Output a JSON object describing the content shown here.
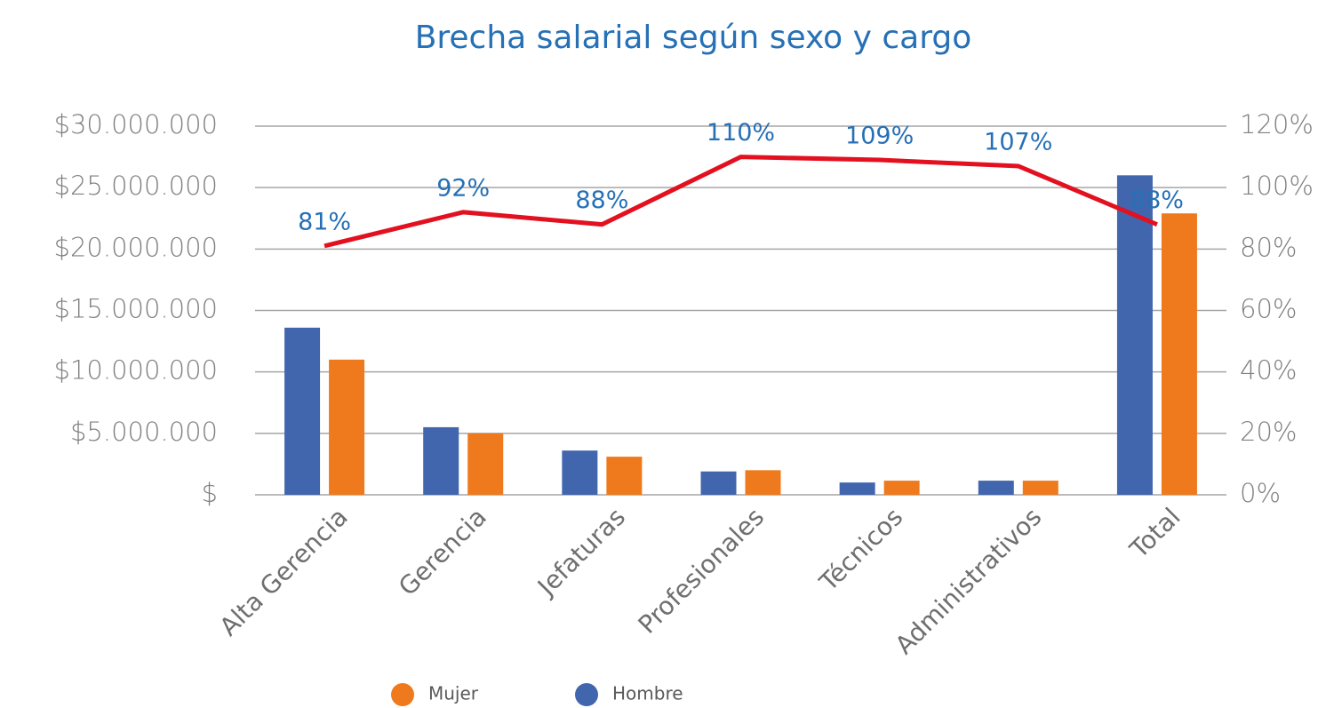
{
  "chart_data": {
    "type": "bar",
    "title": "Brecha salarial según sexo y cargo",
    "categories": [
      "Alta Gerencia",
      "Gerencia",
      "Jefaturas",
      "Profesionales",
      "Técnicos",
      "Administrativos",
      "Total"
    ],
    "series": [
      {
        "name": "Hombre",
        "color": "#4166ae",
        "values": [
          13600000,
          5500000,
          3600000,
          1900000,
          1000000,
          1150000,
          26000000
        ]
      },
      {
        "name": "Mujer",
        "color": "#ef7a1d",
        "values": [
          11000000,
          5000000,
          3100000,
          2000000,
          1150000,
          1150000,
          22900000
        ]
      },
      {
        "type": "line",
        "axis": "y2",
        "color": "#e3101f",
        "values": [
          81,
          92,
          88,
          110,
          109,
          107,
          88
        ],
        "value_labels": [
          "81%",
          "92%",
          "88%",
          "110%",
          "109%",
          "107%",
          "88%"
        ]
      }
    ],
    "ylim": [
      0,
      30000000
    ],
    "yticks": [
      {
        "value": 0,
        "label": "$"
      },
      {
        "value": 5000000,
        "label": "$5.000.000"
      },
      {
        "value": 10000000,
        "label": "$10.000.000"
      },
      {
        "value": 15000000,
        "label": "$15.000.000"
      },
      {
        "value": 20000000,
        "label": "$20.000.000"
      },
      {
        "value": 25000000,
        "label": "$25.000.000"
      },
      {
        "value": 30000000,
        "label": "$30.000.000"
      }
    ],
    "y2lim": [
      0,
      120
    ],
    "y2ticks": [
      {
        "value": 0,
        "label": "0%"
      },
      {
        "value": 20,
        "label": "20%"
      },
      {
        "value": 40,
        "label": "40%"
      },
      {
        "value": 60,
        "label": "60%"
      },
      {
        "value": 80,
        "label": "80%"
      },
      {
        "value": 100,
        "label": "100%"
      },
      {
        "value": 120,
        "label": "120%"
      }
    ],
    "grid": true,
    "legend": "bottom"
  }
}
